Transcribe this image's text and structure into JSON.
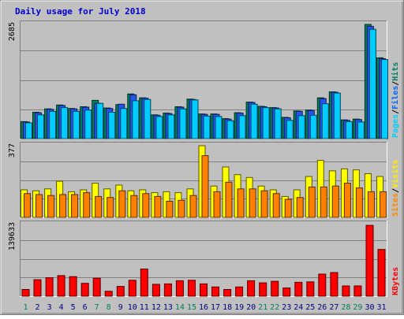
{
  "chart_data": {
    "type": "bar",
    "title": "Daily usage for July 2018",
    "categories": [
      "1",
      "2",
      "3",
      "4",
      "5",
      "6",
      "7",
      "8",
      "9",
      "10",
      "11",
      "12",
      "13",
      "14",
      "15",
      "16",
      "17",
      "18",
      "19",
      "20",
      "21",
      "22",
      "23",
      "24",
      "25",
      "26",
      "27",
      "28",
      "29",
      "30",
      "31"
    ],
    "weekend_days": [
      "1",
      "7",
      "8",
      "14",
      "15",
      "21",
      "22",
      "28",
      "29"
    ],
    "panels": [
      {
        "name": "hits-files-pages",
        "ymax_label": "2685",
        "ymax": 2685,
        "legend": [
          {
            "text": "Pages",
            "color": "#00ccff"
          },
          {
            "text": "/",
            "color": "#000000"
          },
          {
            "text": "Files",
            "color": "#0066ff"
          },
          {
            "text": "/",
            "color": "#000000"
          },
          {
            "text": "Hits",
            "color": "#00805c"
          }
        ],
        "series": [
          {
            "name": "Hits",
            "color": "#00805c",
            "values": [
              400,
              620,
              700,
              790,
              710,
              750,
              900,
              720,
              800,
              1050,
              960,
              560,
              600,
              750,
              930,
              580,
              580,
              470,
              610,
              860,
              760,
              730,
              500,
              650,
              670,
              960,
              1100,
              440,
              460,
              2685,
              1900
            ]
          },
          {
            "name": "Files",
            "color": "#2255ee",
            "values": [
              390,
              610,
              690,
              780,
              700,
              740,
              830,
              710,
              810,
              1030,
              950,
              550,
              590,
              740,
              920,
              570,
              570,
              460,
              600,
              850,
              750,
              720,
              490,
              640,
              660,
              940,
              1090,
              430,
              450,
              2640,
              1880
            ]
          },
          {
            "name": "Pages",
            "color": "#00ccff",
            "values": [
              370,
              560,
              640,
              730,
              640,
              670,
              830,
              620,
              710,
              890,
              920,
              520,
              560,
              700,
              910,
              530,
              520,
              420,
              540,
              810,
              730,
              700,
              430,
              540,
              550,
              820,
              1070,
              400,
              390,
              2570,
              1860
            ]
          }
        ]
      },
      {
        "name": "visits-sites",
        "ymax_label": "377",
        "ymax": 377,
        "legend": [
          {
            "text": "Sites",
            "color": "#ff8800"
          },
          {
            "text": "/",
            "color": "#000000"
          },
          {
            "text": "Visits",
            "color": "#ffee00"
          }
        ],
        "series": [
          {
            "name": "Visits",
            "color": "#ffff00",
            "values": [
              145,
              140,
              150,
              190,
              135,
              145,
              180,
              150,
              170,
              140,
              145,
              130,
              135,
              130,
              150,
              377,
              165,
              265,
              225,
              210,
              165,
              145,
              110,
              145,
              215,
              300,
              245,
              255,
              250,
              230,
              215
            ]
          },
          {
            "name": "Sites",
            "color": "#ff8000",
            "values": [
              125,
              120,
              115,
              120,
              120,
              130,
              110,
              105,
              140,
              115,
              125,
              110,
              85,
              90,
              115,
              325,
              135,
              185,
              150,
              150,
              140,
              125,
              95,
              105,
              160,
              160,
              165,
              180,
              155,
              135,
              135
            ]
          }
        ]
      },
      {
        "name": "kbytes",
        "ymax_label": "139633",
        "ymax": 139633,
        "legend": [
          {
            "text": "KBytes",
            "color": "#ff0000"
          }
        ],
        "series": [
          {
            "name": "KBytes",
            "color": "#ff0000",
            "values": [
              13000,
              32000,
              36000,
              40000,
              38000,
              25000,
              35000,
              9500,
              19000,
              31000,
              53000,
              23000,
              24000,
              30000,
              31000,
              24000,
              18000,
              13000,
              18000,
              30000,
              26000,
              29000,
              16000,
              27000,
              28000,
              43000,
              46000,
              20000,
              20000,
              138000,
              91000
            ]
          }
        ]
      }
    ]
  }
}
